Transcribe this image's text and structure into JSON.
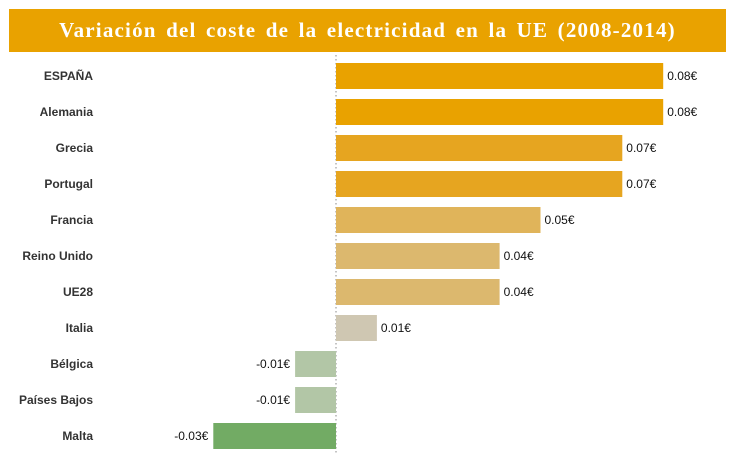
{
  "chart_data": {
    "type": "bar",
    "orientation": "horizontal",
    "title": "Variación del coste de la electricidad en la UE (2008-2014)",
    "title_bg": "#e9a200",
    "categories": [
      "ESPAÑA",
      "Alemania",
      "Grecia",
      "Portugal",
      "Francia",
      "Reino Unido",
      "UE28",
      "Italia",
      "Bélgica",
      "Países Bajos",
      "Malta"
    ],
    "values": [
      0.08,
      0.08,
      0.07,
      0.07,
      0.05,
      0.04,
      0.04,
      0.01,
      -0.01,
      -0.01,
      -0.03
    ],
    "value_labels": [
      "0.08€",
      "0.08€",
      "0.07€",
      "0.07€",
      "0.05€",
      "0.04€",
      "0.04€",
      "0.01€",
      "-0.01€",
      "-0.01€",
      "-0.03€"
    ],
    "colors": [
      "#e9a200",
      "#e9a200",
      "#e6a520",
      "#e6a520",
      "#e0b45a",
      "#dcb86e",
      "#dcb86e",
      "#cfc7b2",
      "#b2c6a6",
      "#b2c6a6",
      "#72ab64"
    ],
    "xlim": [
      -0.03,
      0.08
    ],
    "zero_line": "dotted",
    "grid": false,
    "legend": "none",
    "xlabel": "",
    "ylabel": ""
  }
}
